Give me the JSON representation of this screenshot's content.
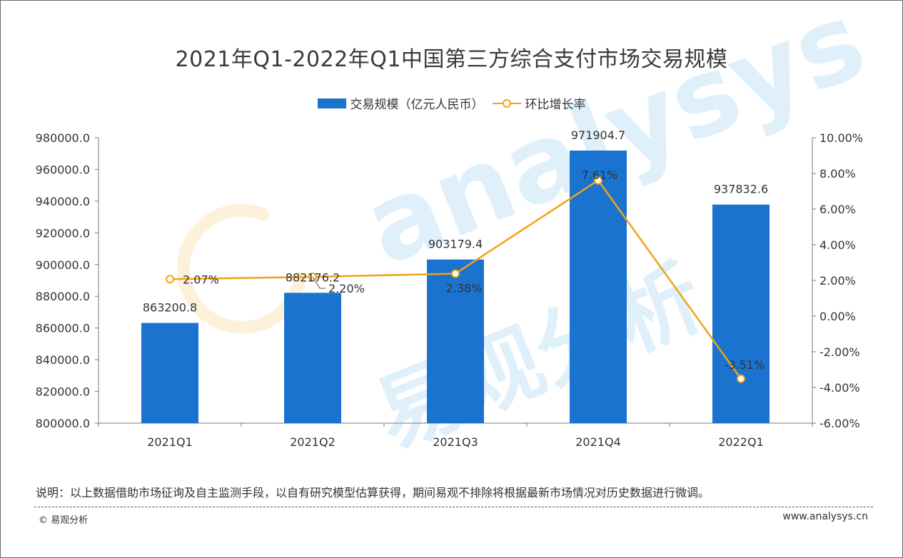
{
  "chart_data": {
    "type": "bar",
    "title": "2021年Q1-2022年Q1中国第三方综合支付市场交易规模",
    "categories": [
      "2021Q1",
      "2021Q2",
      "2021Q3",
      "2021Q4",
      "2022Q1"
    ],
    "series": [
      {
        "name": "交易规模（亿元人民币）",
        "type": "bar",
        "axis": "left",
        "values": [
          863200.8,
          882176.2,
          903179.4,
          971904.7,
          937832.6
        ],
        "labels": [
          "863200.8",
          "882176.2",
          "903179.4",
          "971904.7",
          "937832.6"
        ]
      },
      {
        "name": "环比增长率",
        "type": "line",
        "axis": "right",
        "values": [
          2.07,
          2.2,
          2.38,
          7.61,
          -3.51
        ],
        "labels": [
          "2.07%",
          "2.20%",
          "2.38%",
          "7.61%",
          "-3.51%"
        ]
      }
    ],
    "ylim_left": [
      800000,
      980000
    ],
    "ylim_right": [
      -6,
      10
    ],
    "yticks_left": [
      "800000.0",
      "820000.0",
      "840000.0",
      "860000.0",
      "880000.0",
      "900000.0",
      "920000.0",
      "940000.0",
      "960000.0",
      "980000.0"
    ],
    "yticks_right": [
      "-6.00%",
      "-4.00%",
      "-2.00%",
      "0.00%",
      "2.00%",
      "4.00%",
      "6.00%",
      "8.00%",
      "10.00%"
    ],
    "legend_position": "top-center",
    "grid": false,
    "colors": {
      "bar": "#1a73cf",
      "line": "#efa415"
    }
  },
  "watermark": {
    "text_en": "analysys",
    "text_cn": "易观分析"
  },
  "footer": {
    "note": "说明：以上数据借助市场征询及自主监测手段，以自有研究模型估算获得，期间易观不排除将根据最新市场情况对历史数据进行微调。",
    "copyright": "© 易观分析",
    "website": "www.analysys.cn"
  }
}
